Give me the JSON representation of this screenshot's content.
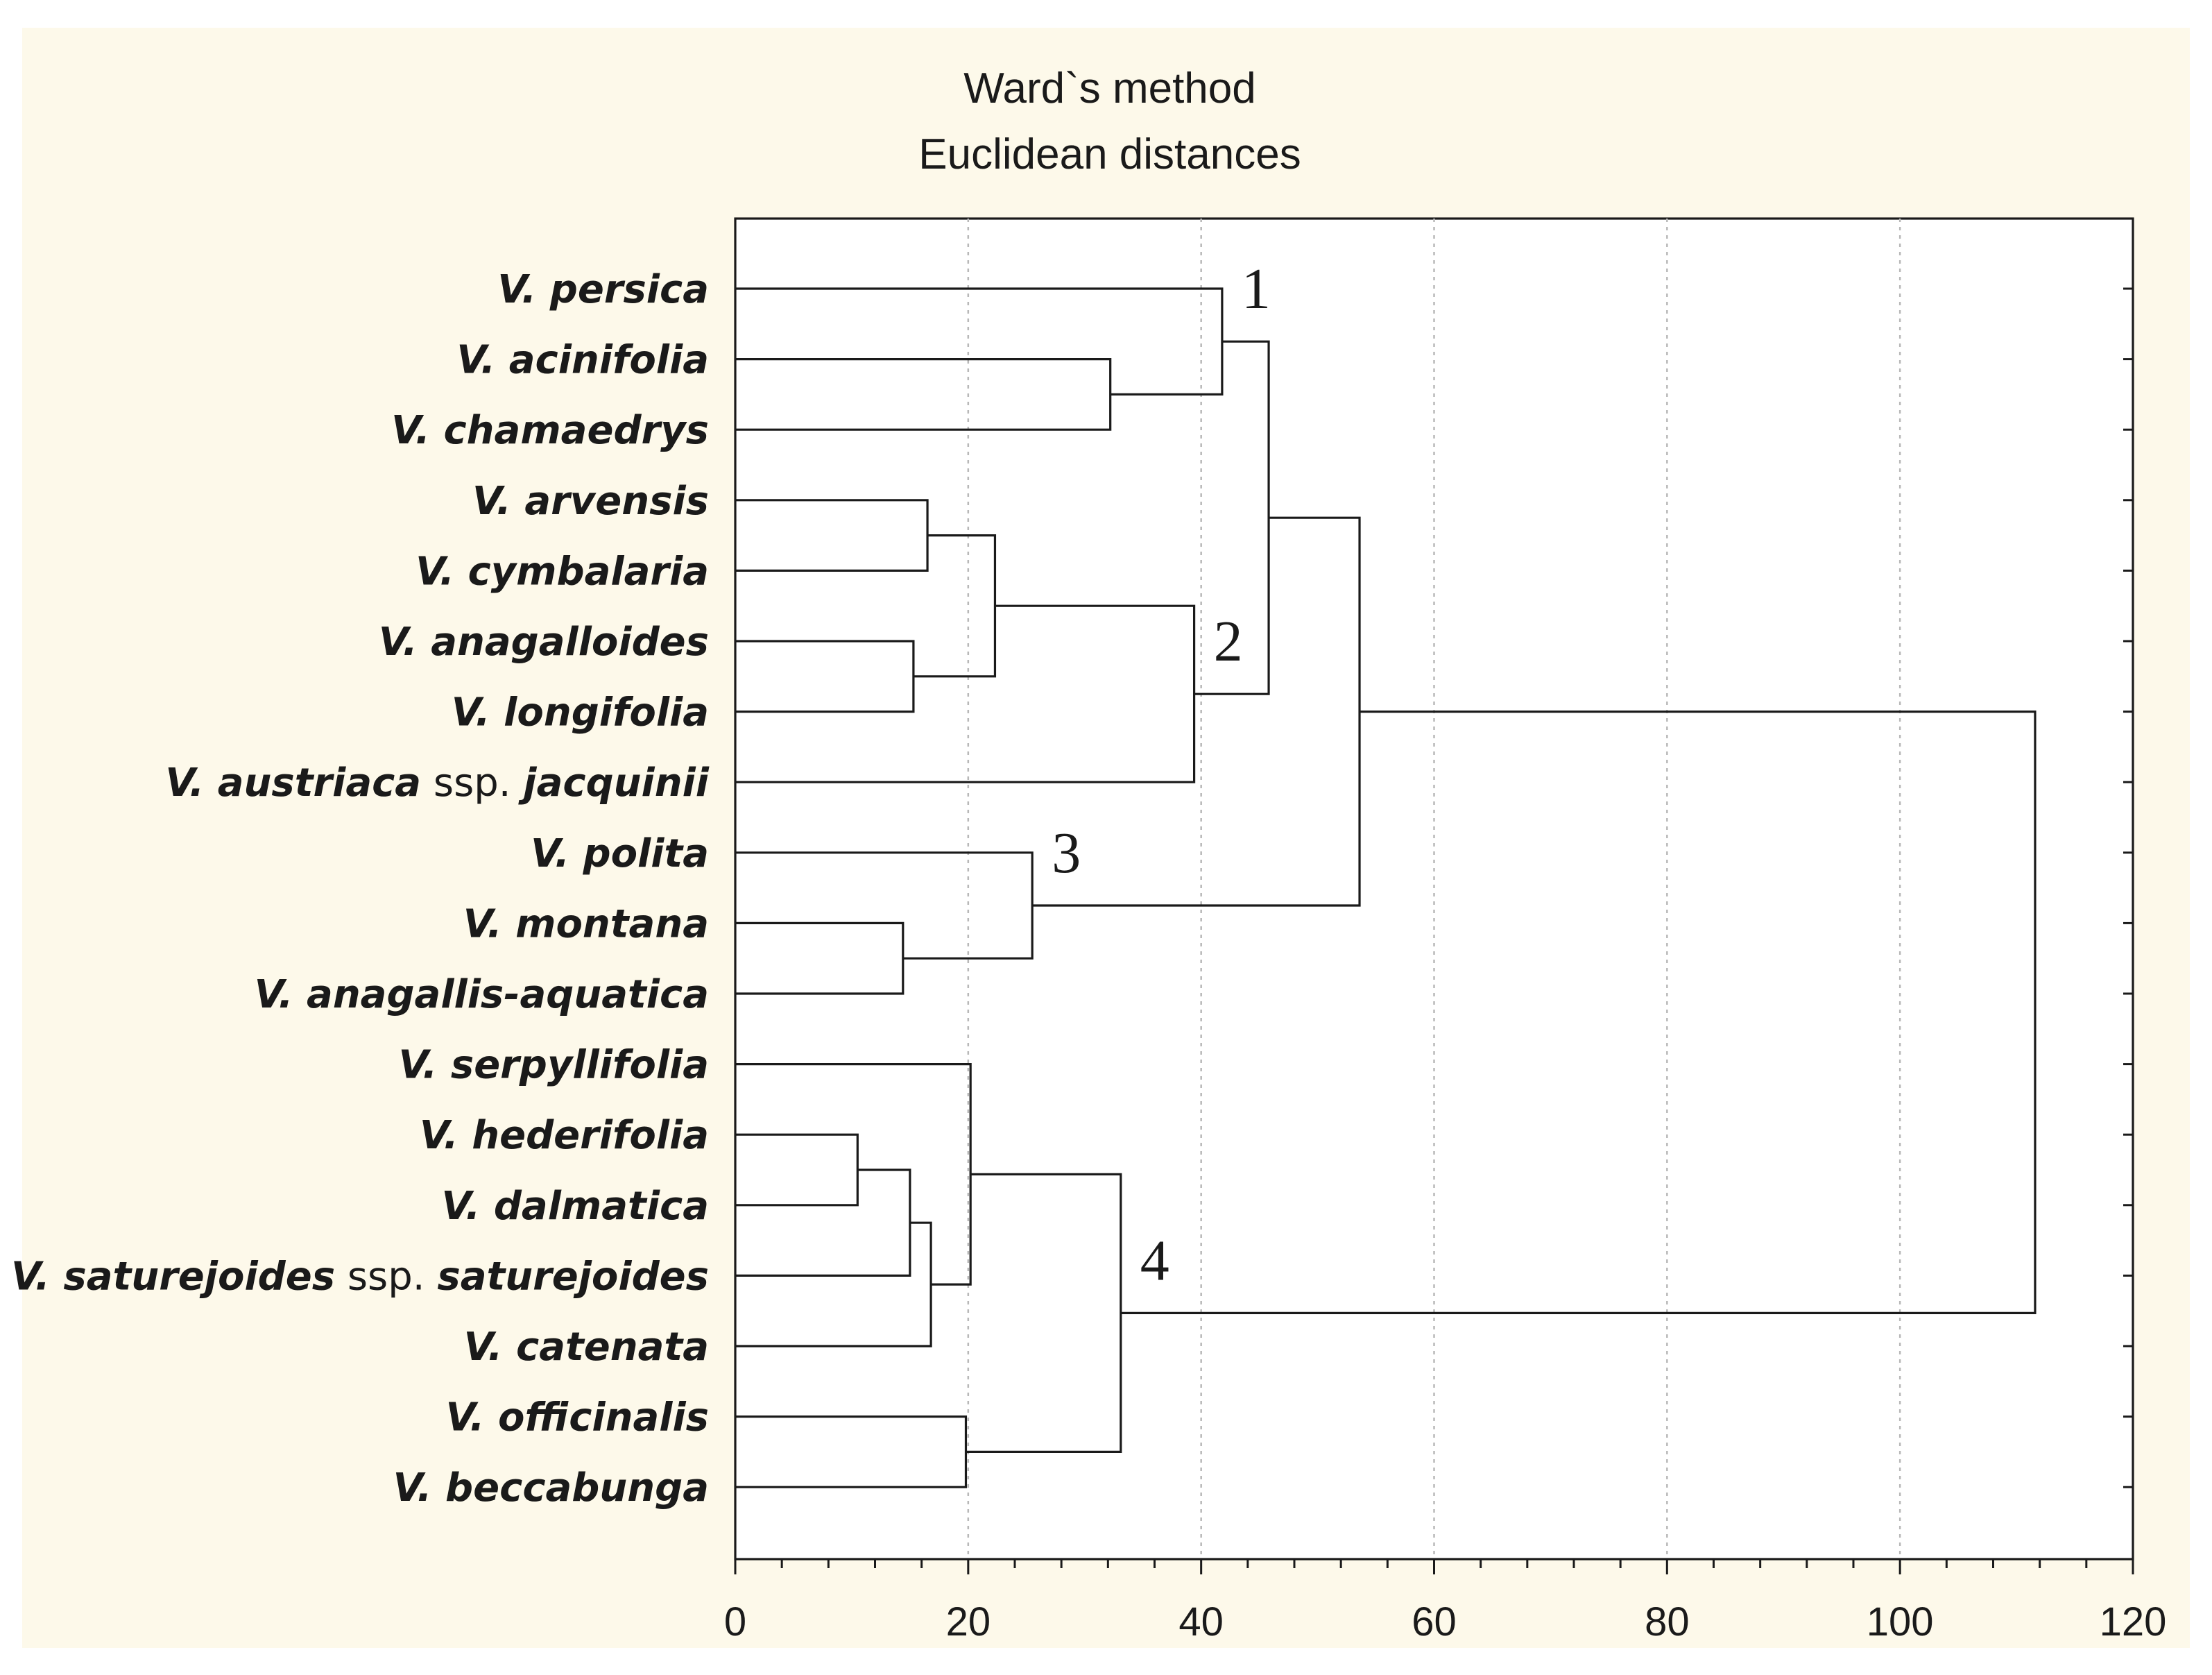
{
  "chart_data": {
    "type": "dendrogram",
    "title": "Ward`s method",
    "subtitle": "Euclidean distances",
    "xlabel": "",
    "ylabel": "",
    "xlim": [
      0,
      120
    ],
    "x_ticks": [
      0,
      20,
      40,
      60,
      80,
      100,
      120
    ],
    "grid": "vertical dotted",
    "orientation": "horizontal",
    "leaves": [
      {
        "parts": [
          {
            "t": "V. persica",
            "i": true
          }
        ]
      },
      {
        "parts": [
          {
            "t": "V. acinifolia",
            "i": true
          }
        ]
      },
      {
        "parts": [
          {
            "t": "V. chamaedrys",
            "i": true
          }
        ]
      },
      {
        "parts": [
          {
            "t": "V. arvensis",
            "i": true
          }
        ]
      },
      {
        "parts": [
          {
            "t": "V. cymbalaria",
            "i": true
          }
        ]
      },
      {
        "parts": [
          {
            "t": "V. anagalloides",
            "i": true
          }
        ]
      },
      {
        "parts": [
          {
            "t": "V. longifolia",
            "i": true
          }
        ]
      },
      {
        "parts": [
          {
            "t": "V. austriaca",
            "i": true
          },
          {
            "t": " ssp. ",
            "i": false
          },
          {
            "t": "jacquinii",
            "i": true
          }
        ]
      },
      {
        "parts": [
          {
            "t": "V. polita",
            "i": true
          }
        ]
      },
      {
        "parts": [
          {
            "t": "V. montana",
            "i": true
          }
        ]
      },
      {
        "parts": [
          {
            "t": "V. anagallis-aquatica",
            "i": true
          }
        ]
      },
      {
        "parts": [
          {
            "t": "V. serpyllifolia",
            "i": true
          }
        ]
      },
      {
        "parts": [
          {
            "t": "V. hederifolia",
            "i": true
          }
        ]
      },
      {
        "parts": [
          {
            "t": "V. dalmatica",
            "i": true
          }
        ]
      },
      {
        "parts": [
          {
            "t": "V. saturejoides",
            "i": true
          },
          {
            "t": " ssp. ",
            "i": false
          },
          {
            "t": "saturejoides",
            "i": true
          }
        ]
      },
      {
        "parts": [
          {
            "t": "V. catenata",
            "i": true
          }
        ]
      },
      {
        "parts": [
          {
            "t": "V. officinalis",
            "i": true
          }
        ]
      },
      {
        "parts": [
          {
            "t": "V. beccabunga",
            "i": true
          }
        ]
      }
    ],
    "merges": [
      {
        "id": "m1",
        "a": 1,
        "b": 2,
        "distance": 32.2
      },
      {
        "id": "m2",
        "a": 0,
        "b": "m1",
        "distance": 41.8
      },
      {
        "id": "m3",
        "a": 3,
        "b": 4,
        "distance": 16.5
      },
      {
        "id": "m4",
        "a": 5,
        "b": 6,
        "distance": 15.3
      },
      {
        "id": "m5",
        "a": "m3",
        "b": "m4",
        "distance": 22.3
      },
      {
        "id": "m6",
        "a": "m5",
        "b": 7,
        "distance": 39.4
      },
      {
        "id": "m7",
        "a": "m2",
        "b": "m6",
        "distance": 45.8
      },
      {
        "id": "m8",
        "a": 9,
        "b": 10,
        "distance": 14.4
      },
      {
        "id": "m9",
        "a": 8,
        "b": "m8",
        "distance": 25.5
      },
      {
        "id": "m10",
        "a": "m7",
        "b": "m9",
        "distance": 53.6
      },
      {
        "id": "m11",
        "a": 12,
        "b": 13,
        "distance": 10.5
      },
      {
        "id": "m12",
        "a": "m11",
        "b": 14,
        "distance": 15.0
      },
      {
        "id": "m13",
        "a": "m12",
        "b": 15,
        "distance": 16.8
      },
      {
        "id": "m14",
        "a": 11,
        "b": "m13",
        "distance": 20.2
      },
      {
        "id": "m15",
        "a": 16,
        "b": 17,
        "distance": 19.8
      },
      {
        "id": "m16",
        "a": "m14",
        "b": "m15",
        "distance": 33.1
      },
      {
        "id": "m17",
        "a": "m10",
        "b": "m16",
        "distance": 111.6
      }
    ],
    "cluster_labels": [
      {
        "text": "1",
        "merge": "m2"
      },
      {
        "text": "2",
        "merge": "m6"
      },
      {
        "text": "3",
        "merge": "m9"
      },
      {
        "text": "4",
        "merge": "m16"
      }
    ]
  }
}
